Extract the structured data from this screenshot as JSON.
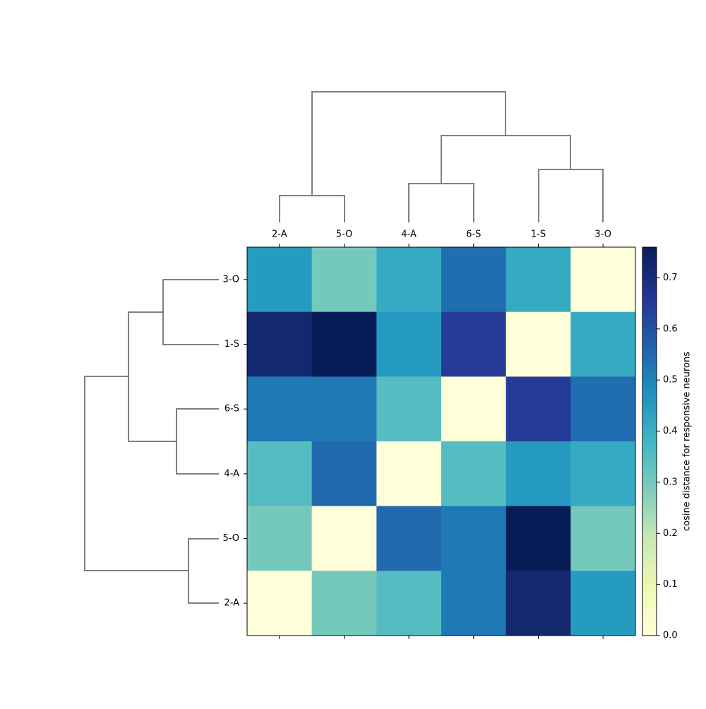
{
  "chart_data": {
    "type": "heatmap",
    "colormap": "YlGnBu",
    "columns": [
      "2-A",
      "5-O",
      "4-A",
      "6-S",
      "1-S",
      "3-O"
    ],
    "rows": [
      "3-O",
      "1-S",
      "6-S",
      "4-A",
      "5-O",
      "2-A"
    ],
    "z": [
      [
        0.45,
        0.3,
        0.41,
        0.54,
        0.41,
        0
      ],
      [
        0.72,
        0.76,
        0.45,
        0.65,
        0,
        0.41
      ],
      [
        0.52,
        0.52,
        0.35,
        0,
        0.65,
        0.54
      ],
      [
        0.35,
        0.55,
        0,
        0.35,
        0.45,
        0.41
      ],
      [
        0.3,
        0,
        0.55,
        0.52,
        0.76,
        0.3
      ],
      [
        0,
        0.3,
        0.35,
        0.52,
        0.72,
        0.45
      ]
    ],
    "clim": [
      0,
      0.76
    ],
    "cticks": [
      {
        "value": 0,
        "label": "0.0"
      },
      0.1,
      0.2,
      0.3,
      0.4,
      0.5,
      0.6,
      0.7
    ],
    "colorbar_label": "cosine distance for responsive neurons"
  }
}
